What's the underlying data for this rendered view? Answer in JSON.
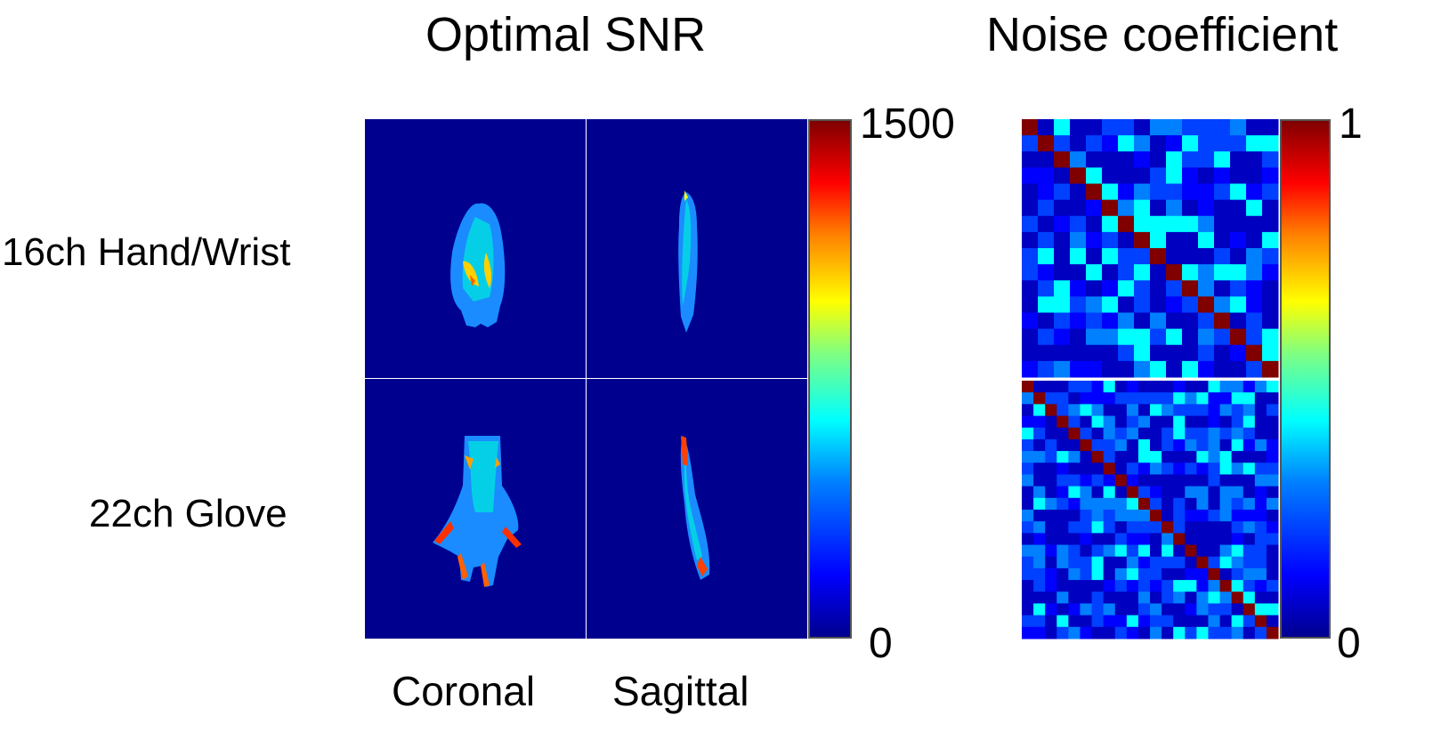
{
  "titles": {
    "left": "Optimal SNR",
    "right": "Noise coefficient"
  },
  "rows": [
    "16ch Hand/Wrist",
    "22ch Glove"
  ],
  "columns": [
    "Coronal",
    "Sagittal"
  ],
  "snr_colorbar": {
    "max": "1500",
    "min": "0"
  },
  "noise_colorbar": {
    "max": "1",
    "min": "0"
  },
  "colormap": [
    "#00008f",
    "#0000ff",
    "#0080ff",
    "#00ffff",
    "#80ff80",
    "#ffff00",
    "#ff8000",
    "#ff0000",
    "#800000"
  ],
  "matrix_sizes": {
    "top": 16,
    "bottom": 22
  }
}
